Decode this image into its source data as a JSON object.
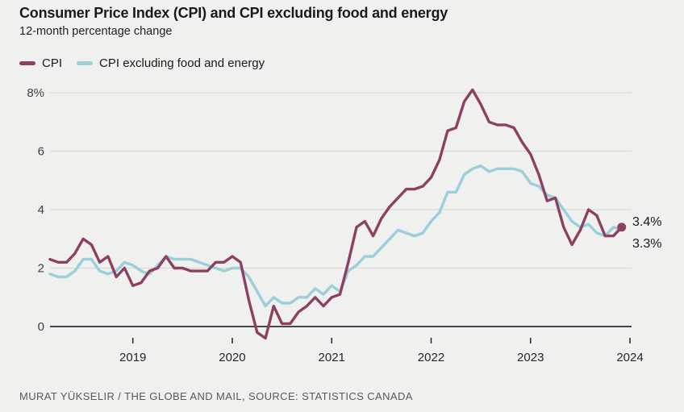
{
  "page": {
    "title": "Consumer Price Index (CPI) and CPI excluding food and energy",
    "subtitle": "12-month percentage change",
    "credit": "MURAT YÜKSELIR / THE GLOBE AND MAIL, SOURCE: STATISTICS CANADA"
  },
  "colors": {
    "background": "#f0f0ee",
    "cpi_line": "#8c4162",
    "core_line": "#9bcfd9",
    "grid": "#d9d9d8",
    "axis": "#2e2e2e"
  },
  "chart_data": {
    "type": "line",
    "title": "Consumer Price Index (CPI) and CPI excluding food and energy",
    "subtitle": "12-month percentage change",
    "xlabel": "",
    "ylabel": "12-month percentage change",
    "grid": "horizontal",
    "legend_position": "top-left",
    "frequency": "monthly",
    "ylim": [
      -0.5,
      8.3
    ],
    "x": [
      "2018-03",
      "2018-04",
      "2018-05",
      "2018-06",
      "2018-07",
      "2018-08",
      "2018-09",
      "2018-10",
      "2018-11",
      "2018-12",
      "2019-01",
      "2019-02",
      "2019-03",
      "2019-04",
      "2019-05",
      "2019-06",
      "2019-07",
      "2019-08",
      "2019-09",
      "2019-10",
      "2019-11",
      "2019-12",
      "2020-01",
      "2020-02",
      "2020-03",
      "2020-04",
      "2020-05",
      "2020-06",
      "2020-07",
      "2020-08",
      "2020-09",
      "2020-10",
      "2020-11",
      "2020-12",
      "2021-01",
      "2021-02",
      "2021-03",
      "2021-04",
      "2021-05",
      "2021-06",
      "2021-07",
      "2021-08",
      "2021-09",
      "2021-10",
      "2021-11",
      "2021-12",
      "2022-01",
      "2022-02",
      "2022-03",
      "2022-04",
      "2022-05",
      "2022-06",
      "2022-07",
      "2022-08",
      "2022-09",
      "2022-10",
      "2022-11",
      "2022-12",
      "2023-01",
      "2023-02",
      "2023-03",
      "2023-04",
      "2023-05",
      "2023-06",
      "2023-07",
      "2023-08",
      "2023-09",
      "2023-10",
      "2023-11",
      "2023-12"
    ],
    "series": [
      {
        "name": "CPI",
        "color": "#8c4162",
        "end_label": "3.4%",
        "end_dot": true,
        "values": [
          2.3,
          2.2,
          2.2,
          2.5,
          3.0,
          2.8,
          2.2,
          2.4,
          1.7,
          2.0,
          1.4,
          1.5,
          1.9,
          2.0,
          2.4,
          2.0,
          2.0,
          1.9,
          1.9,
          1.9,
          2.2,
          2.2,
          2.4,
          2.2,
          0.9,
          -0.2,
          -0.4,
          0.7,
          0.1,
          0.1,
          0.5,
          0.7,
          1.0,
          0.7,
          1.0,
          1.1,
          2.2,
          3.4,
          3.6,
          3.1,
          3.7,
          4.1,
          4.4,
          4.7,
          4.7,
          4.8,
          5.1,
          5.7,
          6.7,
          6.8,
          7.7,
          8.1,
          7.6,
          7.0,
          6.9,
          6.9,
          6.8,
          6.3,
          5.9,
          5.2,
          4.3,
          4.4,
          3.4,
          2.8,
          3.3,
          4.0,
          3.8,
          3.1,
          3.1,
          3.4
        ]
      },
      {
        "name": "CPI excluding food and energy",
        "color": "#9bcfd9",
        "end_label": "3.3%",
        "end_dot": false,
        "values": [
          1.8,
          1.7,
          1.7,
          1.9,
          2.3,
          2.3,
          1.9,
          1.8,
          1.9,
          2.2,
          2.1,
          1.9,
          1.8,
          2.1,
          2.4,
          2.3,
          2.3,
          2.3,
          2.2,
          2.1,
          2.0,
          1.9,
          2.0,
          2.0,
          1.7,
          1.2,
          0.7,
          1.0,
          0.8,
          0.8,
          1.0,
          1.0,
          1.3,
          1.1,
          1.4,
          1.2,
          1.9,
          2.1,
          2.4,
          2.4,
          2.7,
          3.0,
          3.3,
          3.2,
          3.1,
          3.2,
          3.6,
          3.9,
          4.6,
          4.6,
          5.2,
          5.4,
          5.5,
          5.3,
          5.4,
          5.4,
          5.4,
          5.3,
          4.9,
          4.8,
          4.5,
          4.4,
          4.0,
          3.6,
          3.4,
          3.5,
          3.2,
          3.1,
          3.4,
          3.3
        ]
      }
    ],
    "y_ticks": [
      {
        "value": 8,
        "label": "8%"
      },
      {
        "value": 6,
        "label": "6"
      },
      {
        "value": 4,
        "label": "4"
      },
      {
        "value": 2,
        "label": "2"
      },
      {
        "value": 0,
        "label": "0"
      }
    ],
    "x_ticks": [
      {
        "month_index": 10,
        "label": "2019"
      },
      {
        "month_index": 22,
        "label": "2020"
      },
      {
        "month_index": 34,
        "label": "2021"
      },
      {
        "month_index": 46,
        "label": "2022"
      },
      {
        "month_index": 58,
        "label": "2023"
      },
      {
        "month_index": 70,
        "label": "2024"
      }
    ]
  }
}
